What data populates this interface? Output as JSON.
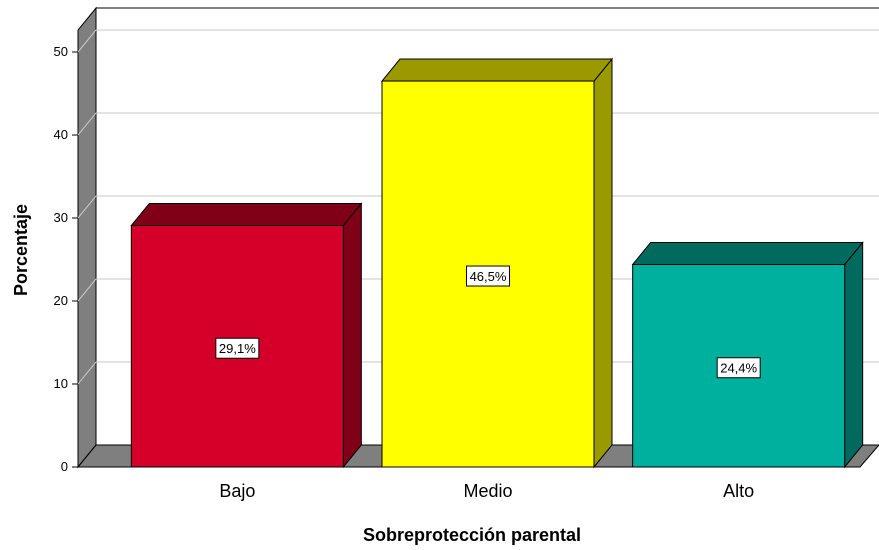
{
  "chart_data": {
    "type": "bar",
    "categories": [
      "Bajo",
      "Medio",
      "Alto"
    ],
    "values": [
      29.1,
      46.5,
      24.4
    ],
    "data_labels": [
      "29,1%",
      "46,5%",
      "24,4%"
    ],
    "colors": [
      "#d4002a",
      "#ffff00",
      "#00b09e"
    ],
    "side_colors": [
      "#800018",
      "#9a9a00",
      "#006a5e"
    ],
    "xlabel": "Sobreprotección parental",
    "ylabel": "Porcentaje",
    "ylim": [
      0,
      50
    ],
    "yticks": [
      "0",
      "10",
      "20",
      "30",
      "40",
      "50"
    ],
    "grid": true,
    "style": "3d"
  }
}
